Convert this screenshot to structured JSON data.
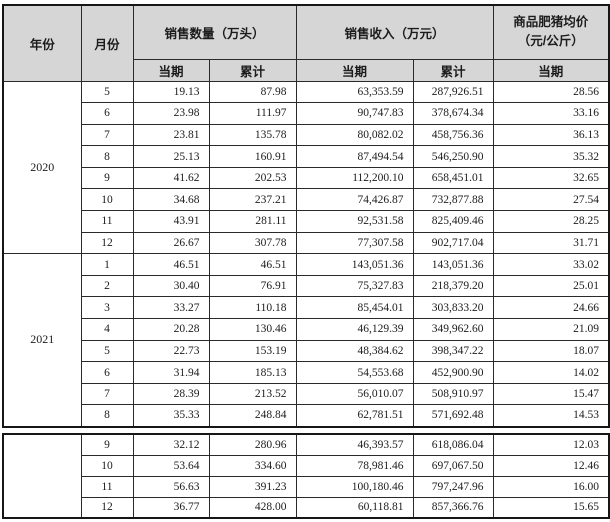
{
  "colors": {
    "header_bg": "#d6d6d6",
    "border": "#2a2a2a",
    "text": "#1c1c1c"
  },
  "table": {
    "headers": {
      "year": "年份",
      "month": "月份",
      "qty_group": "销售数量（万头）",
      "revenue_group": "销售收入（万元）",
      "price_group_line1": "商品肥猪均价",
      "price_group_line2": "（元/公斤）",
      "qty_current": "当期",
      "qty_cumulative": "累计",
      "revenue_current": "当期",
      "revenue_cumulative": "累计",
      "price_current": "当期"
    },
    "groups": [
      {
        "year": "2020",
        "rows": [
          [
            "5",
            "19.13",
            "87.98",
            "63,353.59",
            "287,926.51",
            "28.56"
          ],
          [
            "6",
            "23.98",
            "111.97",
            "90,747.83",
            "378,674.34",
            "33.16"
          ],
          [
            "7",
            "23.81",
            "135.78",
            "80,082.02",
            "458,756.36",
            "36.13"
          ],
          [
            "8",
            "25.13",
            "160.91",
            "87,494.54",
            "546,250.90",
            "35.32"
          ],
          [
            "9",
            "41.62",
            "202.53",
            "112,200.10",
            "658,451.01",
            "32.65"
          ],
          [
            "10",
            "34.68",
            "237.21",
            "74,426.87",
            "732,877.88",
            "27.54"
          ],
          [
            "11",
            "43.91",
            "281.11",
            "92,531.58",
            "825,409.46",
            "28.25"
          ],
          [
            "12",
            "26.67",
            "307.78",
            "77,307.58",
            "902,717.04",
            "31.71"
          ]
        ]
      },
      {
        "year": "2021",
        "rows": [
          [
            "1",
            "46.51",
            "46.51",
            "143,051.36",
            "143,051.36",
            "33.02"
          ],
          [
            "2",
            "30.40",
            "76.91",
            "75,327.83",
            "218,379.20",
            "25.01"
          ],
          [
            "3",
            "33.27",
            "110.18",
            "85,454.01",
            "303,833.20",
            "24.66"
          ],
          [
            "4",
            "20.28",
            "130.46",
            "46,129.39",
            "349,962.60",
            "21.09"
          ],
          [
            "5",
            "22.73",
            "153.19",
            "48,384.62",
            "398,347.22",
            "18.07"
          ],
          [
            "6",
            "31.94",
            "185.13",
            "54,553.68",
            "452,900.90",
            "14.02"
          ],
          [
            "7",
            "28.39",
            "213.52",
            "56,010.07",
            "508,910.97",
            "15.47"
          ],
          [
            "8",
            "35.33",
            "248.84",
            "62,781.51",
            "571,692.48",
            "14.53"
          ]
        ]
      }
    ],
    "continuation": {
      "year": "",
      "rows": [
        [
          "9",
          "32.12",
          "280.96",
          "46,393.57",
          "618,086.04",
          "12.03"
        ],
        [
          "10",
          "53.64",
          "334.60",
          "78,981.46",
          "697,067.50",
          "12.46"
        ],
        [
          "11",
          "56.63",
          "391.23",
          "100,180.46",
          "797,247.96",
          "16.00"
        ],
        [
          "12",
          "36.77",
          "428.00",
          "60,118.81",
          "857,366.76",
          "15.65"
        ]
      ]
    }
  }
}
